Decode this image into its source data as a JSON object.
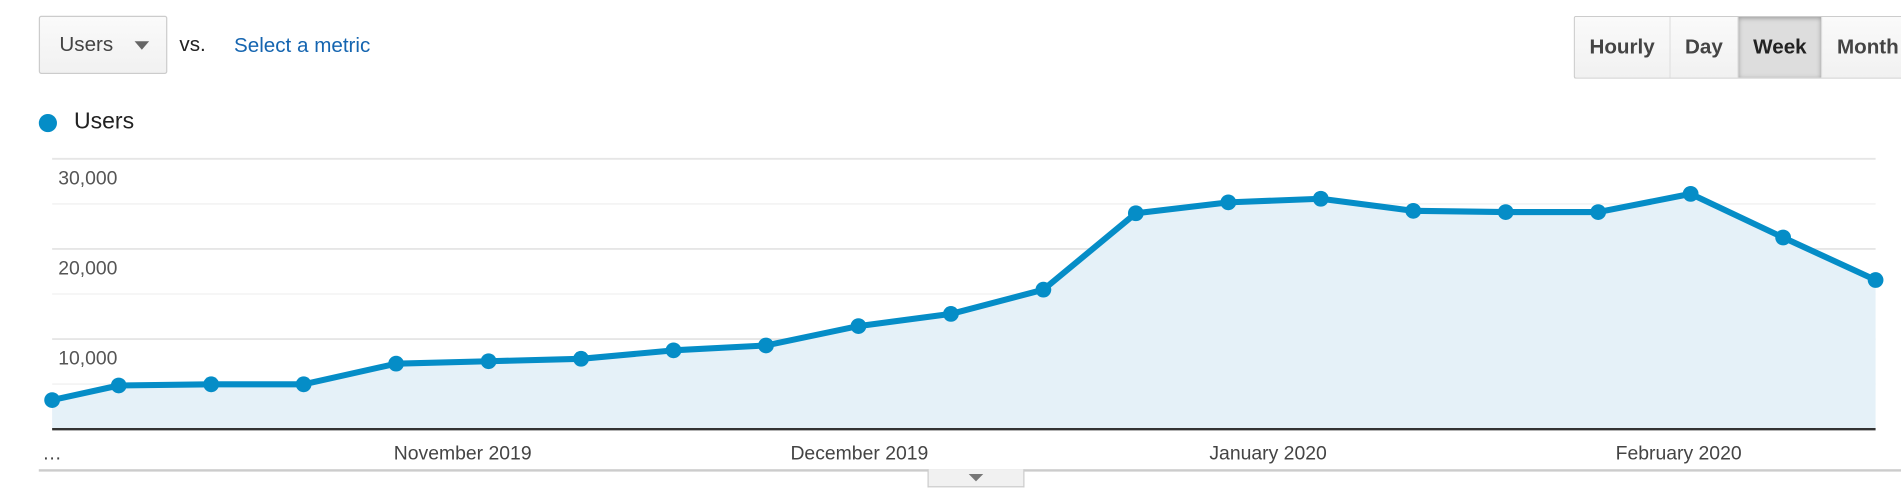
{
  "controls": {
    "metric": "Users",
    "vs": "vs.",
    "select_metric": "Select a metric",
    "periods": [
      "Hourly",
      "Day",
      "Week",
      "Month"
    ],
    "active_period": "Week"
  },
  "colors": {
    "series": "#058dc7",
    "fill": "#e5f1f8",
    "grid": "#e8e8e8"
  },
  "chart_data": {
    "type": "area",
    "title": "",
    "legend": [
      "Users"
    ],
    "legend_position": "top-left",
    "xlabel": "",
    "ylabel": "",
    "ylim": [
      0,
      30000
    ],
    "yticks": [
      10000,
      20000,
      30000
    ],
    "ytick_labels": [
      "10,000",
      "20,000",
      "30,000"
    ],
    "grid": true,
    "x_unit": "weeks",
    "x": [
      0,
      0.72,
      1.72,
      2.72,
      3.72,
      4.72,
      5.72,
      6.72,
      7.72,
      8.72,
      9.72,
      10.72,
      11.72,
      12.72,
      13.72,
      14.72,
      15.72,
      16.72,
      17.72,
      18.72,
      19.72
    ],
    "series": [
      {
        "name": "Users",
        "values": [
          3230,
          4850,
          4980,
          4980,
          7270,
          7540,
          7810,
          8750,
          9290,
          11440,
          12790,
          15480,
          23960,
          25170,
          25570,
          24230,
          24090,
          24090,
          26110,
          21270,
          16550
        ]
      }
    ],
    "xtick_positions": [
      0,
      4.44,
      8.73,
      13.15,
      17.59
    ],
    "xtick_labels": [
      "…",
      "November 2019",
      "December 2019",
      "January 2020",
      "February 2020"
    ]
  }
}
